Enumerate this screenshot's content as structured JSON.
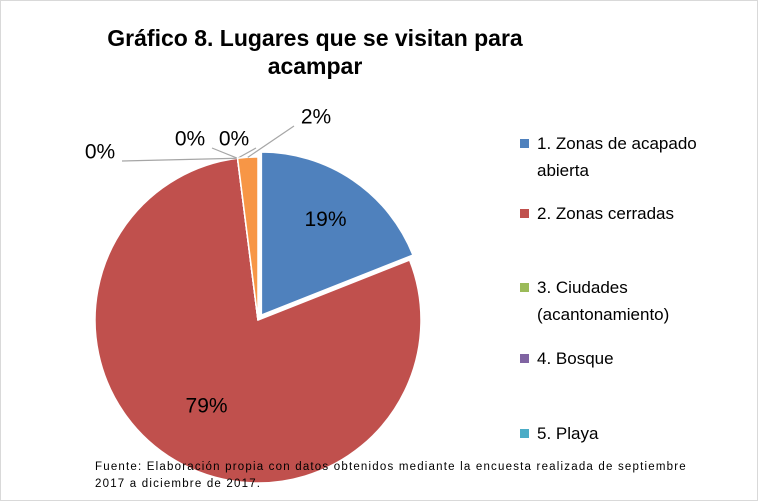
{
  "chart_data": {
    "type": "pie",
    "title": "Gráfico 8. Lugares que se visitan para acampar",
    "categories": [
      "1. Zonas de acapado abierta",
      "2. Zonas  cerradas",
      "3. Ciudades (acantonamiento)",
      "4. Bosque",
      "5. Playa",
      null
    ],
    "values": [
      19,
      79,
      0,
      0,
      0,
      2
    ],
    "value_labels": [
      "19%",
      "79%",
      "0%",
      "0%",
      "0%",
      "2%"
    ],
    "colors": [
      "#4f81bd",
      "#c0504d",
      "#9bbb59",
      "#8064a2",
      "#4bacc6",
      "#f79646"
    ],
    "legend": "right",
    "note": "Fuente: Elaboración propia con datos obtenidos mediante la encuesta realizada de septiembre 2017 a diciembre de 2017."
  }
}
